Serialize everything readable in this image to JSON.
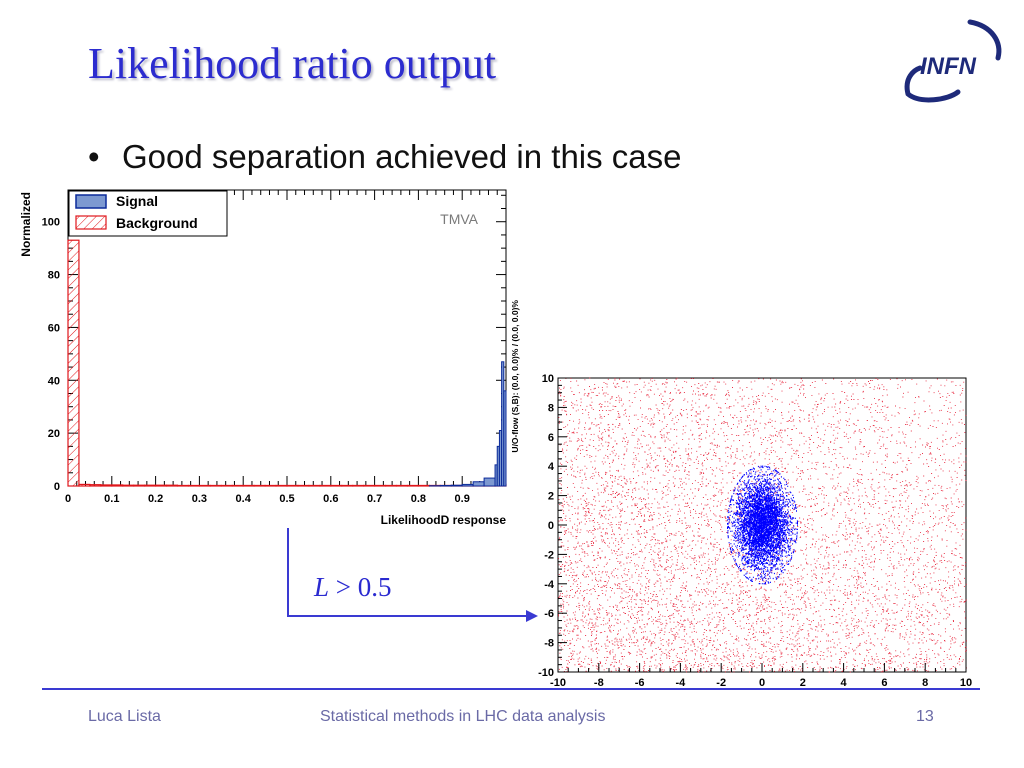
{
  "slide": {
    "title": "Likelihood ratio output",
    "bullet": "Good separation achieved in this case",
    "cut_label": {
      "variable": "L",
      "operator": ">",
      "value": "0.5"
    }
  },
  "logo": {
    "text": "INFN",
    "color": "#1e2a7a"
  },
  "footer": {
    "author": "Luca Lista",
    "talk": "Statistical methods in LHC data analysis",
    "page": "13"
  },
  "colors": {
    "accent": "#2c2ccf",
    "signal_fill": "#7d99d1",
    "signal_line": "#0b2a9a",
    "background_line": "#e0161b",
    "scatter_signal": "#0000ff",
    "scatter_background": "#e3001b"
  },
  "chart_data": [
    {
      "type": "bar",
      "xlabel": "LikelihoodD response",
      "ylabel": "Normalized",
      "overflow_label": "U/O-flow (S,B): (0.0, 0.0)% / (0.0, 0.0)%",
      "watermark": "TMVA",
      "xlim": [
        0,
        1
      ],
      "ylim": [
        0,
        112
      ],
      "xticks": [
        "0",
        "0.1",
        "0.2",
        "0.3",
        "0.4",
        "0.5",
        "0.6",
        "0.7",
        "0.8",
        "0.9"
      ],
      "yticks": [
        "0",
        "20",
        "40",
        "60",
        "80",
        "100"
      ],
      "legend": {
        "position": "top-left",
        "entries": [
          "Signal",
          "Background"
        ]
      },
      "bins": 40,
      "series": [
        {
          "name": "Signal",
          "values": [
            0,
            0,
            0,
            0,
            0,
            0,
            0,
            0,
            0,
            0,
            0,
            0,
            0,
            0,
            0,
            0,
            0,
            0,
            0,
            0,
            0,
            0,
            0,
            0,
            0,
            0,
            0,
            0,
            0,
            0,
            0,
            0,
            0,
            0.1,
            0.2,
            0.3,
            0.6,
            1.6,
            3.0,
            7.8
          ]
        },
        {
          "name": "Background",
          "values": [
            93,
            0.6,
            0.5,
            0.4,
            0.4,
            0.3,
            0.3,
            0.3,
            0.3,
            0.3,
            0.2,
            0.2,
            0.2,
            0.2,
            0.2,
            0.2,
            0.2,
            0.2,
            0.2,
            0.2,
            0.2,
            0.2,
            0.2,
            0.2,
            0.2,
            0.2,
            0.2,
            0.2,
            0.2,
            0.2,
            0.2,
            0.2,
            0.2,
            0.2,
            0.2,
            0.2,
            0.3,
            0.3,
            0.4,
            0.6
          ]
        }
      ],
      "signal_last_bins_fine": [
        8,
        15,
        21,
        47,
        36
      ]
    },
    {
      "type": "scatter",
      "xlim": [
        -10,
        10
      ],
      "ylim": [
        -10,
        10
      ],
      "xticks": [
        "-10",
        "-8",
        "-6",
        "-4",
        "-2",
        "0",
        "2",
        "4",
        "6",
        "8",
        "10"
      ],
      "yticks": [
        "10",
        "8",
        "6",
        "4",
        "2",
        "0",
        "-2",
        "-4",
        "-6",
        "-8",
        "-10"
      ],
      "series": [
        {
          "name": "",
          "distribution": "uniform background, density increasing toward lower-left",
          "color": "#e3001b"
        },
        {
          "name": "",
          "distribution": "gaussian blob centered at (0, 0), sigma_x 1.2, sigma_y 2.8",
          "center": [
            0,
            0
          ],
          "sigma": [
            1.2,
            2.8
          ],
          "color": "#0000ff"
        }
      ]
    }
  ]
}
